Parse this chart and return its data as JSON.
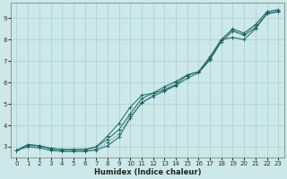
{
  "xlabel": "Humidex (Indice chaleur)",
  "ylabel": "",
  "bg_color": "#cce8e8",
  "grid_color": "#aacccc",
  "line_color": "#1a6666",
  "xlim_min": -0.5,
  "xlim_max": 23.5,
  "ylim_min": 2.5,
  "ylim_max": 9.7,
  "xticks": [
    0,
    1,
    2,
    3,
    4,
    5,
    6,
    7,
    8,
    9,
    10,
    11,
    12,
    13,
    14,
    15,
    16,
    17,
    18,
    19,
    20,
    21,
    22,
    23
  ],
  "yticks": [
    3,
    4,
    5,
    6,
    7,
    8,
    9
  ],
  "line1_x": [
    0,
    1,
    2,
    3,
    4,
    5,
    6,
    7,
    8,
    9,
    10,
    11,
    12,
    13,
    14,
    15,
    16,
    17,
    18,
    19,
    20,
    21,
    22,
    23
  ],
  "line1_y": [
    2.83,
    3.1,
    3.05,
    2.93,
    2.87,
    2.87,
    2.87,
    3.0,
    3.35,
    3.8,
    4.55,
    5.25,
    5.5,
    5.8,
    6.05,
    6.35,
    6.5,
    7.2,
    8.0,
    8.5,
    8.3,
    8.7,
    9.3,
    9.4
  ],
  "line2_x": [
    0,
    1,
    2,
    3,
    4,
    5,
    6,
    7,
    8,
    9,
    10,
    11,
    12,
    13,
    14,
    15,
    16,
    17,
    18,
    19,
    20,
    21,
    22,
    23
  ],
  "line2_y": [
    2.83,
    3.1,
    3.05,
    2.93,
    2.87,
    2.87,
    2.87,
    3.0,
    3.5,
    4.1,
    4.85,
    5.4,
    5.5,
    5.65,
    5.9,
    6.35,
    6.5,
    7.1,
    8.0,
    8.1,
    8.0,
    8.5,
    9.2,
    9.3
  ],
  "line3_x": [
    0,
    1,
    2,
    3,
    4,
    5,
    6,
    7,
    8,
    9,
    10,
    11,
    12,
    13,
    14,
    15,
    16,
    17,
    18,
    19,
    20,
    21,
    22,
    23
  ],
  "line3_y": [
    2.83,
    3.05,
    3.0,
    2.88,
    2.83,
    2.83,
    2.83,
    2.9,
    3.2,
    3.6,
    4.4,
    5.1,
    5.4,
    5.7,
    6.0,
    6.3,
    6.5,
    7.15,
    7.95,
    8.45,
    8.25,
    8.65,
    9.25,
    9.35
  ],
  "line4_x": [
    0,
    1,
    2,
    3,
    4,
    5,
    6,
    7,
    8,
    9,
    10,
    11,
    12,
    13,
    14,
    15,
    16,
    17,
    18,
    19,
    20,
    21,
    22,
    23
  ],
  "line4_y": [
    2.83,
    3.0,
    2.95,
    2.83,
    2.78,
    2.78,
    2.78,
    2.85,
    3.05,
    3.45,
    4.35,
    5.05,
    5.35,
    5.6,
    5.85,
    6.2,
    6.45,
    7.05,
    7.9,
    8.4,
    8.2,
    8.55,
    9.2,
    9.3
  ]
}
